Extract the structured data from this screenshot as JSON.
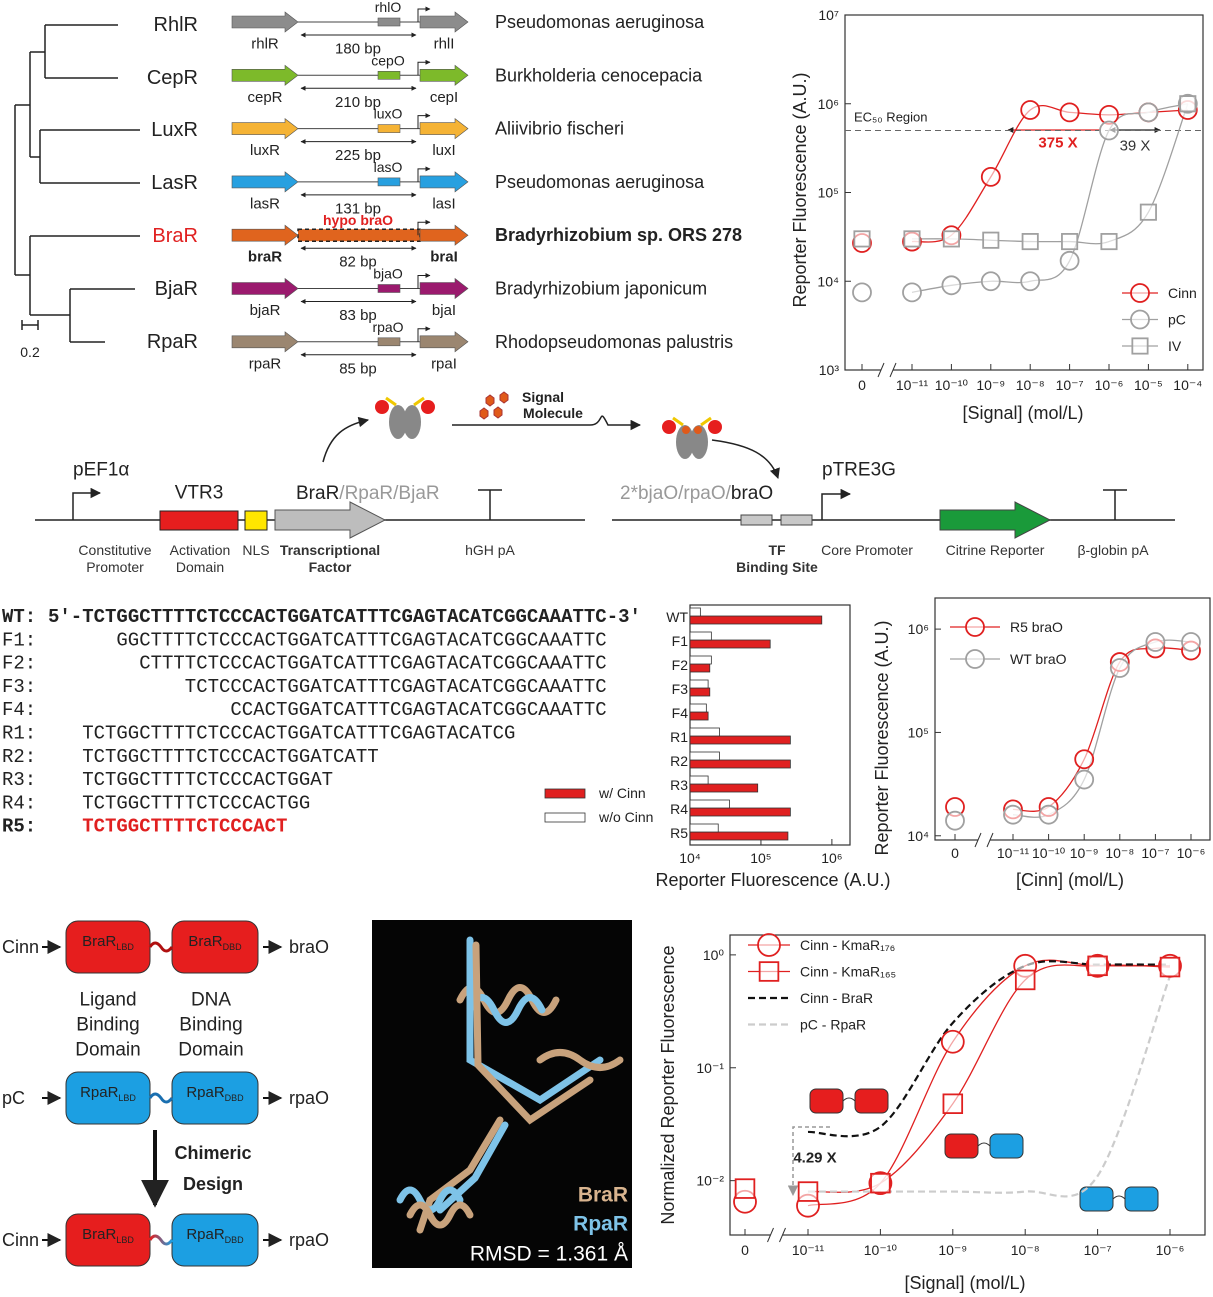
{
  "tree": {
    "leaves": [
      {
        "name": "RhlR",
        "color": "#222222"
      },
      {
        "name": "CepR",
        "color": "#222222"
      },
      {
        "name": "LuxR",
        "color": "#222222"
      },
      {
        "name": "LasR",
        "color": "#222222"
      },
      {
        "name": "BraR",
        "color": "#e02020"
      },
      {
        "name": "BjaR",
        "color": "#222222"
      },
      {
        "name": "RpaR",
        "color": "#222222"
      }
    ],
    "scale": "0.2"
  },
  "operons": [
    {
      "r": "rhlR",
      "o": "rhlO",
      "i": "rhlI",
      "bp": "180 bp",
      "organism": "Pseudomonas aeruginosa",
      "color": "#8c8c8c"
    },
    {
      "r": "cepR",
      "o": "cepO",
      "i": "cepI",
      "bp": "210 bp",
      "organism": "Burkholderia cenocepacia",
      "color": "#7dba2a"
    },
    {
      "r": "luxR",
      "o": "luxO",
      "i": "luxI",
      "bp": "225 bp",
      "organism": "Aliivibrio fischeri",
      "color": "#f5b335"
    },
    {
      "r": "lasR",
      "o": "lasO",
      "i": "lasI",
      "bp": "131 bp",
      "organism": "Pseudomonas aeruginosa",
      "color": "#27a0e0"
    },
    {
      "r": "braR",
      "o": "hypo braO",
      "i": "braI",
      "bp": "82 bp",
      "organism": "Bradyrhizobium sp. ORS 278",
      "color": "#e0641e",
      "highlight": true
    },
    {
      "r": "bjaR",
      "o": "bjaO",
      "i": "bjaI",
      "bp": "83 bp",
      "organism": "Bradyrhizobium japonicum",
      "color": "#9b1a6e"
    },
    {
      "r": "rpaR",
      "o": "rpaO",
      "i": "rpaI",
      "bp": "85 bp",
      "organism": "Rhodopseudomonas palustris",
      "color": "#9b8670"
    }
  ],
  "circuit": {
    "signal": [
      "Signal",
      "Molecule"
    ],
    "promoter1": "pEF1α",
    "vtr3": "VTR3",
    "tf_main": "BraR",
    "tf_alt": "/RpaR/BjaR",
    "cap_promoter": [
      "Constitutive",
      "Promoter"
    ],
    "cap_activation": [
      "Activation",
      "Domain"
    ],
    "cap_nls": "NLS",
    "cap_tf": [
      "Transcriptional",
      "Factor"
    ],
    "cap_hgh": "hGH pA",
    "site_alt": "2*bjaO/rpaO/",
    "site_main": "braO",
    "promoter2": "pTRE3G",
    "cap_site": [
      "TF",
      "Binding Site"
    ],
    "cap_core": "Core Promoter",
    "cap_citrine": "Citrine Reporter",
    "cap_globin": "β-globin pA"
  },
  "sequences": [
    {
      "name": "WT:",
      "seq": "5′-TCTGGCTTTTCTCCCACTGGATCATTTCGAGTACATCGGCAAATTC-3′",
      "bold": true
    },
    {
      "name": "F1:",
      "seq": "GGCTTTTCTCCCACTGGATCATTTCGAGTACATCGGCAAATTC"
    },
    {
      "name": "F2:",
      "seq": "CTTTTCTCCCACTGGATCATTTCGAGTACATCGGCAAATTC"
    },
    {
      "name": "F3:",
      "seq": "TCTCCCACTGGATCATTTCGAGTACATCGGCAAATTC"
    },
    {
      "name": "F4:",
      "seq": "CCACTGGATCATTTCGAGTACATCGGCAAATTC"
    },
    {
      "name": "R1:",
      "seq": "TCTGGCTTTTCTCCCACTGGATCATTTCGAGTACATCG"
    },
    {
      "name": "R2:",
      "seq": "TCTGGCTTTTCTCCCACTGGATCATT"
    },
    {
      "name": "R3:",
      "seq": "TCTGGCTTTTCTCCCACTGGAT"
    },
    {
      "name": "R4:",
      "seq": "TCTGGCTTTTCTCCCACTGG"
    },
    {
      "name": "R5:",
      "seq": "TCTGGCTTTTCTCCCACT",
      "bold": true,
      "color": "#e02020"
    }
  ],
  "chart_data": [
    {
      "type": "line",
      "y_label": "Reporter Fluorescence (A.U.)",
      "x_label": "[Signal] (mol/L)",
      "log_y": true,
      "categories": [
        "0",
        "10⁻¹¹",
        "10⁻¹⁰",
        "10⁻⁹",
        "10⁻⁸",
        "10⁻⁷",
        "10⁻⁶",
        "10⁻⁵",
        "10⁻⁴"
      ],
      "ylim": [
        1000,
        10000000
      ],
      "yticks": [
        {
          "value": 1000,
          "label": "10³"
        },
        {
          "value": 10000,
          "label": "10⁴"
        },
        {
          "value": 100000,
          "label": "10⁵"
        },
        {
          "value": 1000000,
          "label": "10⁶"
        },
        {
          "value": 10000000,
          "label": "10⁷"
        }
      ],
      "threshold": {
        "label": "EC₅₀ Region",
        "value": 500000
      },
      "annotations": [
        {
          "text": "375 X",
          "color": "#e02020"
        },
        {
          "text": "39 X",
          "color": "#333333"
        }
      ],
      "legend": "lower right",
      "series": [
        {
          "name": "Cinn",
          "color": "#e02020",
          "marker": "circle",
          "values": [
            27000,
            28000,
            33000,
            150000,
            850000,
            800000,
            750000,
            800000,
            850000
          ]
        },
        {
          "name": "pC",
          "color": "#a0a0a0",
          "marker": "circle",
          "values": [
            7500,
            7500,
            9000,
            10000,
            10000,
            17000,
            500000,
            800000,
            1000000
          ]
        },
        {
          "name": "IV",
          "color": "#a0a0a0",
          "marker": "square",
          "values": [
            30000,
            30000,
            30000,
            29000,
            28000,
            28000,
            28000,
            60000,
            1000000
          ]
        }
      ]
    },
    {
      "type": "barh",
      "x_label": "Reporter Fluorescence (A.U.)",
      "log_x": true,
      "categories": [
        "WT",
        "F1",
        "F2",
        "F3",
        "F4",
        "R1",
        "R2",
        "R3",
        "R4",
        "R5"
      ],
      "xlim": [
        10000,
        1800000
      ],
      "xticks": [
        {
          "value": 10000,
          "label": "10⁴"
        },
        {
          "value": 100000,
          "label": "10⁵"
        },
        {
          "value": 1000000,
          "label": "10⁶"
        }
      ],
      "series": [
        {
          "name": "w/ Cinn",
          "color": "#e02020",
          "values": [
            720000,
            135000,
            19000,
            19000,
            18000,
            260000,
            260000,
            90000,
            260000,
            240000
          ]
        },
        {
          "name": "w/o Cinn",
          "color": "#ffffff",
          "values": [
            14000,
            20000,
            20000,
            18000,
            17000,
            26000,
            26000,
            18000,
            36000,
            25000
          ]
        }
      ]
    },
    {
      "type": "line",
      "y_label": "Reporter Fluorescence (A.U.)",
      "x_label": "[Cinn] (mol/L)",
      "log_y": true,
      "categories": [
        "0",
        "10⁻¹¹",
        "10⁻¹⁰",
        "10⁻⁹",
        "10⁻⁸",
        "10⁻⁷",
        "10⁻⁶"
      ],
      "ylim": [
        9100,
        2000000
      ],
      "yticks": [
        {
          "value": 10000,
          "label": "10⁴"
        },
        {
          "value": 100000,
          "label": "10⁵"
        },
        {
          "value": 1000000,
          "label": "10⁶"
        }
      ],
      "legend": "upper left",
      "series": [
        {
          "name": "R5 braO",
          "color": "#e02020",
          "marker": "circle",
          "values": [
            19000,
            18000,
            19000,
            55000,
            480000,
            650000,
            620000
          ]
        },
        {
          "name": "WT braO",
          "color": "#a0a0a0",
          "marker": "circle",
          "values": [
            14000,
            16000,
            16000,
            35000,
            420000,
            750000,
            750000
          ]
        }
      ]
    },
    {
      "type": "line",
      "y_label": "Normalized Reporter Fluorescence",
      "x_label": "[Signal] (mol/L)",
      "log_y": true,
      "categories": [
        "0",
        "10⁻¹¹",
        "10⁻¹⁰",
        "10⁻⁹",
        "10⁻⁸",
        "10⁻⁷",
        "10⁻⁶"
      ],
      "ylim": [
        0.0033,
        1.5
      ],
      "yticks": [
        {
          "value": 0.01,
          "label": "10⁻²"
        },
        {
          "value": 0.1,
          "label": "10⁻¹"
        },
        {
          "value": 1,
          "label": "10⁰"
        }
      ],
      "annotations": [
        {
          "text": "4.29 X",
          "color": "#222222"
        }
      ],
      "legend": "upper left",
      "series": [
        {
          "name": "Cinn - KmaR₁₇₆",
          "color": "#e02020",
          "marker": "circle",
          "values": [
            0.0065,
            0.006,
            0.0095,
            0.17,
            0.8,
            0.8,
            0.8
          ]
        },
        {
          "name": "Cinn - KmaR₁₆₅",
          "color": "#e02020",
          "marker": "square",
          "values": [
            0.0085,
            0.008,
            0.0095,
            0.048,
            0.6,
            0.8,
            0.78
          ]
        },
        {
          "name": "Cinn - BraR",
          "color": "#111111",
          "dash": true,
          "values": [
            null,
            0.027,
            0.03,
            0.25,
            0.8,
            0.82,
            0.82
          ]
        },
        {
          "name": "pC - RpaR",
          "color": "#cccccc",
          "dash": true,
          "values": [
            null,
            0.008,
            0.008,
            0.008,
            0.008,
            0.011,
            0.65
          ]
        }
      ]
    }
  ],
  "domains": {
    "rows": [
      {
        "input": "Cinn",
        "lbd": "BraR",
        "lbd_sub": "LBD",
        "dbd": "BraR",
        "dbd_sub": "DBD",
        "output": "braO",
        "lbd_color": "#e61e1e",
        "dbd_color": "#e61e1e"
      },
      {
        "input": "pC",
        "lbd": "RpaR",
        "lbd_sub": "LBD",
        "dbd": "RpaR",
        "dbd_sub": "DBD",
        "output": "rpaO",
        "lbd_color": "#1c9fe2",
        "dbd_color": "#1c9fe2"
      },
      {
        "input": "Cinn",
        "lbd": "BraR",
        "lbd_sub": "LBD",
        "dbd": "RpaR",
        "dbd_sub": "DBD",
        "output": "rpaO",
        "lbd_color": "#e61e1e",
        "dbd_color": "#1c9fe2"
      }
    ],
    "lbd_caption": [
      "Ligand",
      "Binding",
      "Domain"
    ],
    "dbd_caption": [
      "DNA",
      "Binding",
      "Domain"
    ],
    "design": [
      "Chimeric",
      "Design"
    ]
  },
  "structure": {
    "label1": "BraR",
    "label2": "RpaR",
    "rmsd": "RMSD = 1.361 Å"
  }
}
